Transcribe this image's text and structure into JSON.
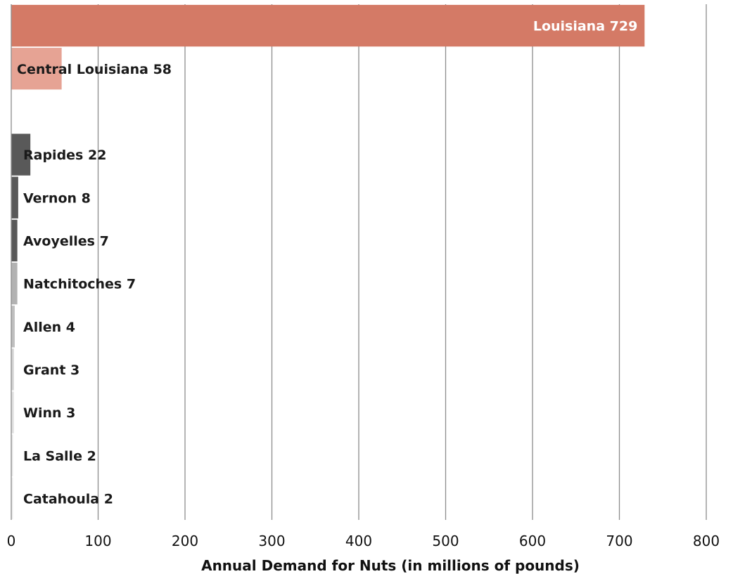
{
  "chart_data": {
    "type": "bar",
    "orientation": "horizontal",
    "categories": [
      "Louisiana",
      "Central Louisiana",
      "",
      "Rapides",
      "Vernon",
      "Avoyelles",
      "Natchitoches",
      "Allen",
      "Grant",
      "Winn",
      "La Salle",
      "Catahoula"
    ],
    "values": [
      729,
      58,
      null,
      22,
      8,
      7,
      7,
      4,
      3,
      3,
      2,
      2
    ],
    "data_labels": [
      "Louisiana 729",
      "Central Louisiana 58",
      "",
      "Rapides 22",
      "Vernon 8",
      "Avoyelles 7",
      "Natchitoches 7",
      "Allen 4",
      "Grant 3",
      "Winn 3",
      "La Salle 2",
      "Catahoula 2"
    ],
    "colors": [
      "#d47a66",
      "#e6a394",
      "#ffffff",
      "#595959",
      "#595959",
      "#595959",
      "#b2b2b2",
      "#bfbfbf",
      "#d4d4d4",
      "#e0e0e0",
      "#e8e8e8",
      "#eeeeee"
    ],
    "xlabel": "Annual Demand for Nuts (in millions of pounds)",
    "ylabel": "",
    "title": "",
    "xlim": [
      0,
      800
    ],
    "x_ticks": [
      0,
      100,
      200,
      300,
      400,
      500,
      600,
      700,
      800
    ],
    "grid": "vertical",
    "legend": "none"
  }
}
